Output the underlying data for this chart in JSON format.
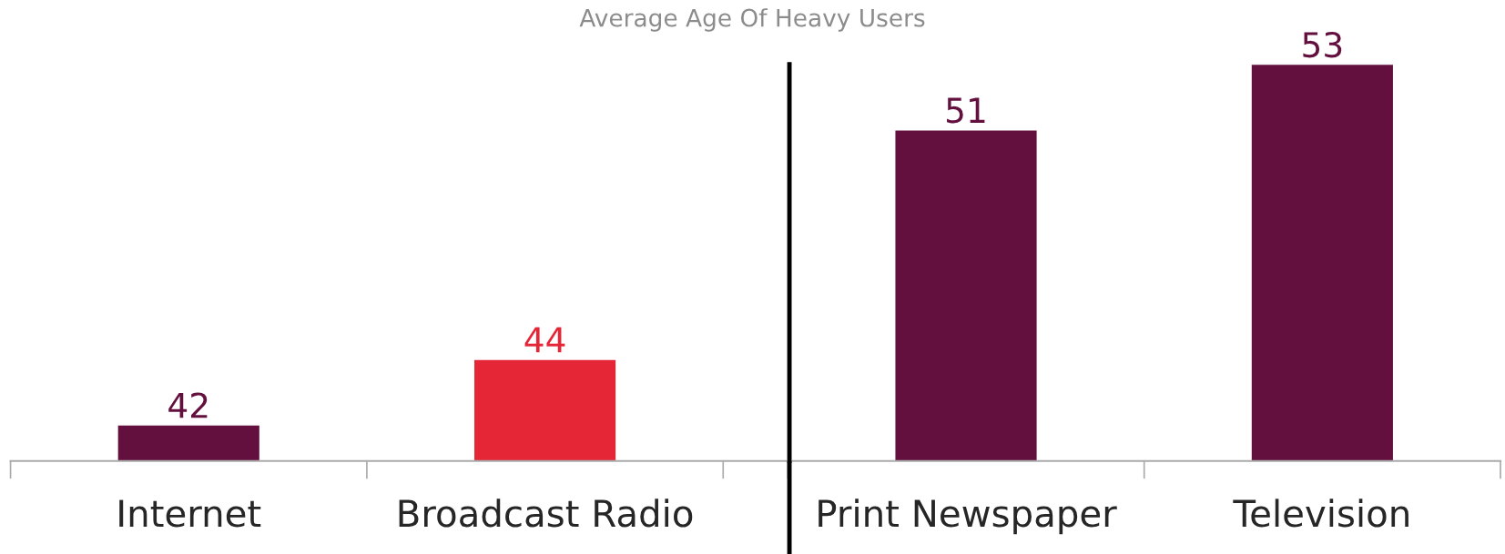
{
  "chart_data": [
    {
      "type": "bar",
      "title": "Average Age Of Heavy Users",
      "categories": [
        "Internet",
        "Broadcast Radio"
      ],
      "values": [
        42,
        44
      ],
      "colors": [
        "#63103f",
        "#e52637"
      ],
      "ylim": [
        40.9,
        53
      ],
      "data_labels": true,
      "tick_labels": "x",
      "grid": false,
      "legend": false
    },
    {
      "type": "bar",
      "categories": [
        "Print Newspaper",
        "Television"
      ],
      "values": [
        51,
        53
      ],
      "colors": [
        "#63103f",
        "#63103f"
      ],
      "ylim": [
        40.9,
        53
      ],
      "data_labels": true,
      "tick_labels": "x",
      "grid": false,
      "legend": false
    }
  ]
}
